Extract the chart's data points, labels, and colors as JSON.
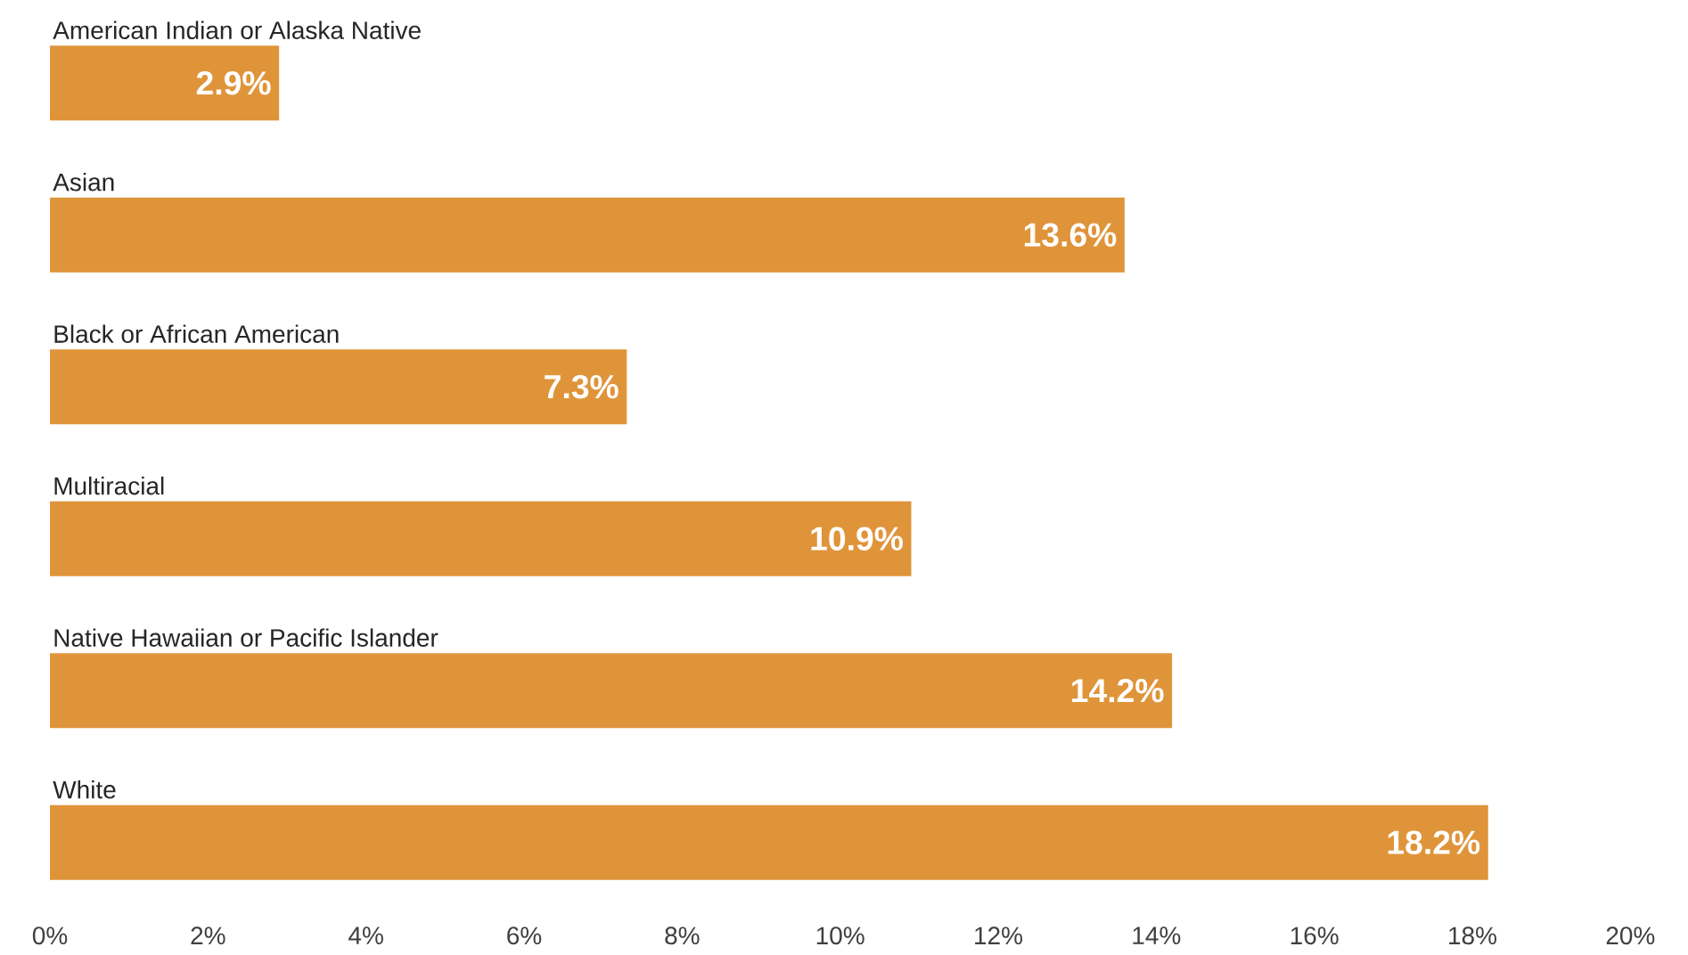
{
  "chart_data": {
    "type": "bar",
    "orientation": "horizontal",
    "categories": [
      "American Indian or Alaska Native",
      "Asian",
      "Black or African American",
      "Multiracial",
      "Native Hawaiian or Pacific Islander",
      "White"
    ],
    "values": [
      2.9,
      13.6,
      7.3,
      10.9,
      14.2,
      18.2
    ],
    "value_labels": [
      "2.9%",
      "13.6%",
      "7.3%",
      "10.9%",
      "14.2%",
      "18.2%"
    ],
    "color": "#e0943a",
    "xlim": [
      0,
      20
    ],
    "xticks": [
      {
        "value": 0,
        "label": "0%"
      },
      {
        "value": 2,
        "label": "2%"
      },
      {
        "value": 4,
        "label": "4%"
      },
      {
        "value": 6,
        "label": "6%"
      },
      {
        "value": 8,
        "label": "8%"
      },
      {
        "value": 10,
        "label": "10%"
      },
      {
        "value": 12,
        "label": "12%"
      },
      {
        "value": 14,
        "label": "14%"
      },
      {
        "value": 16,
        "label": "16%"
      },
      {
        "value": 18,
        "label": "18%"
      },
      {
        "value": 20,
        "label": "20%"
      }
    ],
    "grid": false
  }
}
